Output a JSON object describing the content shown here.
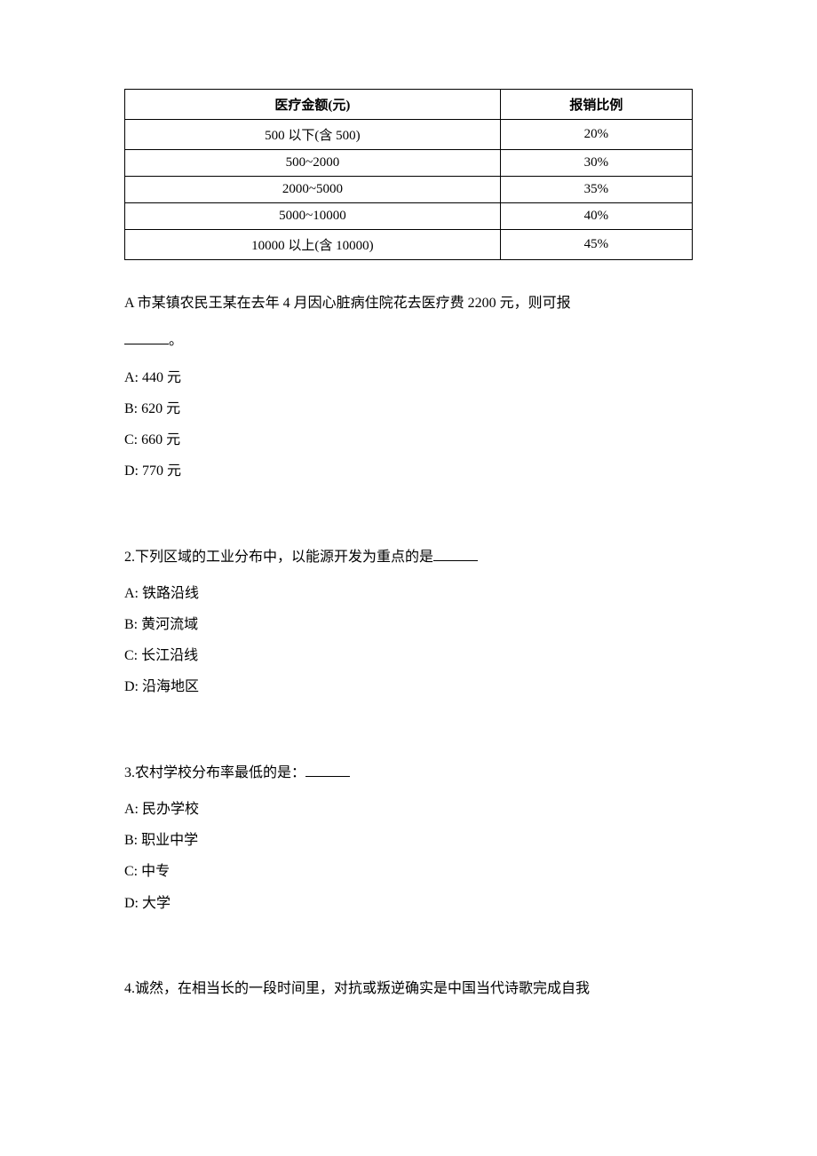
{
  "table": {
    "headers": [
      "医疗金额(元)",
      "报销比例"
    ],
    "rows": [
      [
        "500 以下(含 500)",
        "20%"
      ],
      [
        "500~2000",
        "30%"
      ],
      [
        "2000~5000",
        "35%"
      ],
      [
        "5000~10000",
        "40%"
      ],
      [
        "10000 以上(含 10000)",
        "45%"
      ]
    ]
  },
  "q1": {
    "line1": "A 市某镇农民王某在去年 4 月因心脏病住院花去医疗费 2200 元，则可报",
    "line2_suffix": "。",
    "options": {
      "a": "A: 440 元",
      "b": "B: 620 元",
      "c": "C: 660 元",
      "d": "D: 770 元"
    }
  },
  "q2": {
    "stem": "2.下列区域的工业分布中，以能源开发为重点的是",
    "options": {
      "a": "A: 铁路沿线",
      "b": "B: 黄河流域",
      "c": "C: 长江沿线",
      "d": "D: 沿海地区"
    }
  },
  "q3": {
    "stem": "3.农村学校分布率最低的是：",
    "options": {
      "a": "A: 民办学校",
      "b": "B: 职业中学",
      "c": "C: 中专",
      "d": "D: 大学"
    }
  },
  "q4": {
    "stem": "4.诚然，在相当长的一段时间里，对抗或叛逆确实是中国当代诗歌完成自我"
  }
}
